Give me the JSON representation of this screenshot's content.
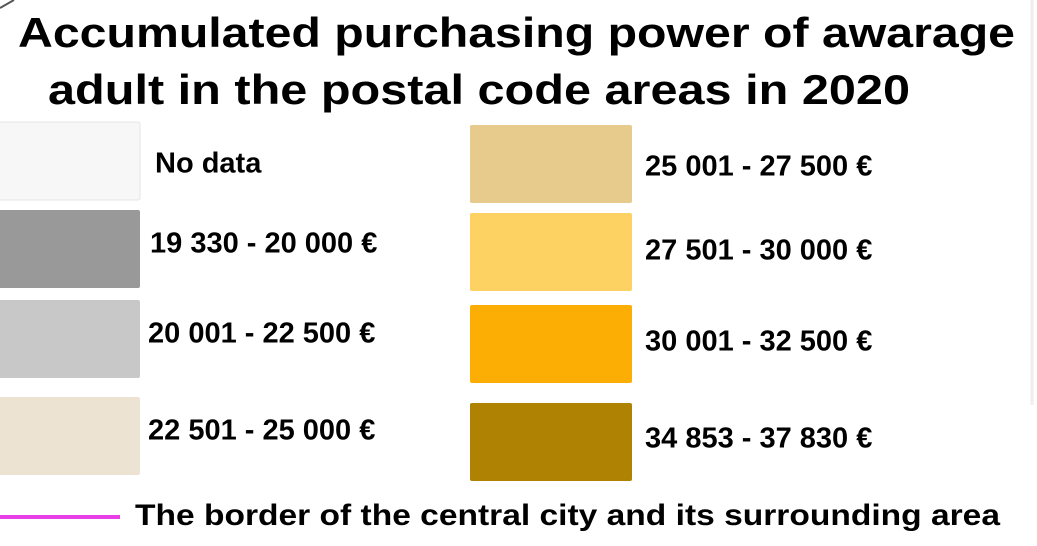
{
  "legend": {
    "title_lines": [
      "Accumulated purchasing power of awarage",
      "adult in the postal code areas in 2020"
    ],
    "items": [
      {
        "label": "No data",
        "color": "#f7f7f7"
      },
      {
        "label": "19 330 - 20 000 €",
        "color": "#999999"
      },
      {
        "label": "20 001 - 22 500 €",
        "color": "#c8c8c8"
      },
      {
        "label": "22 501 - 25 000 €",
        "color": "#ede3d3"
      },
      {
        "label": "25 001 - 27 500 €",
        "color": "#e6cb8c"
      },
      {
        "label": "27 501 - 30 000 €",
        "color": "#fdd162"
      },
      {
        "label": "30 001 - 32 500 €",
        "color": "#fdae05"
      },
      {
        "label": "34 853 - 37 830 €",
        "color": "#b08204"
      }
    ],
    "border": {
      "label": "The border of the central city and its surrounding area",
      "color": "#e83ee8"
    }
  }
}
